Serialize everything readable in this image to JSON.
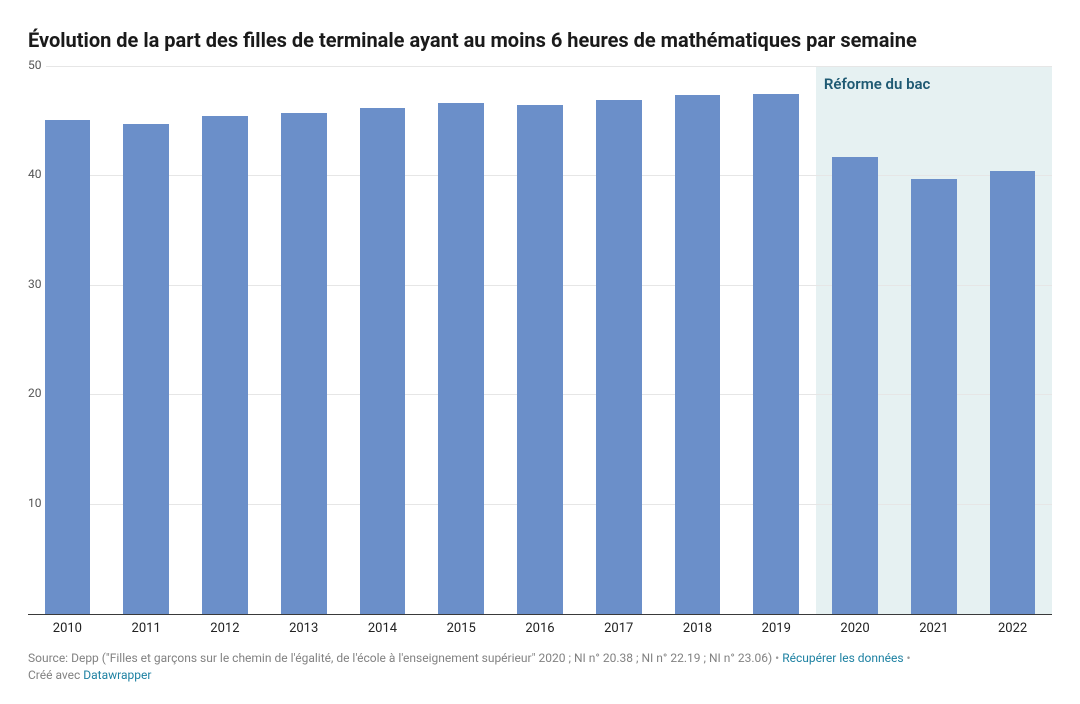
{
  "title": "Évolution de la part des filles de terminale ayant au moins 6 heures de mathématiques par semaine",
  "title_fontsize": 20,
  "chart": {
    "type": "bar",
    "categories": [
      "2010",
      "2011",
      "2012",
      "2013",
      "2014",
      "2015",
      "2016",
      "2017",
      "2018",
      "2019",
      "2020",
      "2021",
      "2022"
    ],
    "values": [
      45.2,
      44.8,
      45.5,
      45.8,
      46.3,
      46.7,
      46.5,
      47.0,
      47.4,
      47.5,
      41.8,
      39.8,
      40.5
    ],
    "bar_color": "#6b8fc9",
    "background_color": "#ffffff",
    "grid_color": "#e6e6e6",
    "axis_color": "#3a3a3a",
    "ylim": [
      0,
      50
    ],
    "yticks": [
      10,
      20,
      30,
      40,
      50
    ],
    "xlabel_fontsize": 13,
    "ylabel_fontsize": 12,
    "tick_color": "#555555",
    "bar_width_ratio": 0.58,
    "highlight": {
      "start_index": 10,
      "end_index": 12,
      "fill": "#e6f1f2",
      "label": "Réforme du bac",
      "label_color": "#1f5a73",
      "label_fontsize": 15,
      "label_fontweight": 600
    }
  },
  "footer": {
    "source_prefix": "Source: ",
    "source_text": "Depp (\"Filles et garçons sur le chemin de l'égalité, de l'école à l'enseignement supérieur\" 2020 ; NI n° 20.38 ; NI n° 22.19 ; NI n° 23.06)",
    "sep": " • ",
    "data_link": "Récupérer les données",
    "credit_prefix": "Créé avec ",
    "credit_link": "Datawrapper",
    "text_color": "#828282",
    "link_color": "#1d81a2",
    "fontsize": 12
  }
}
